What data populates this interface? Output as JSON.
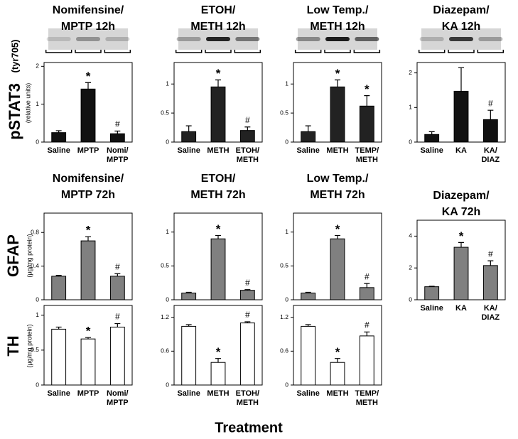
{
  "figure": {
    "row_titles": [
      {
        "title": "pSTAT3",
        "sub": "(tyr705)",
        "unit": "(relative units)"
      },
      {
        "title": "GFAP",
        "unit": "(µg/mg protein)"
      },
      {
        "title": "TH",
        "unit": "(µg/mg protein)"
      }
    ],
    "xlabel": "Treatment"
  },
  "chart_data": [
    {
      "type": "bar",
      "title": [
        "Nomifensine/",
        "MPTP 12h"
      ],
      "categories": [
        [
          "Saline"
        ],
        [
          "MPTP"
        ],
        [
          "Nomi/",
          "MPTP"
        ]
      ],
      "values": [
        0.25,
        1.4,
        0.22
      ],
      "errors": [
        0.05,
        0.17,
        0.07
      ],
      "markers": [
        null,
        "*",
        "#"
      ],
      "color": "#111111",
      "ylim": [
        0,
        2.1
      ],
      "yticks": [
        0,
        1,
        2
      ]
    },
    {
      "type": "bar",
      "title": [
        "ETOH/",
        "METH 12h"
      ],
      "categories": [
        [
          "Saline"
        ],
        [
          "METH"
        ],
        [
          "ETOH/",
          "METH"
        ]
      ],
      "values": [
        0.18,
        0.95,
        0.2
      ],
      "errors": [
        0.1,
        0.12,
        0.06
      ],
      "markers": [
        null,
        "*",
        "#"
      ],
      "color": "#222222",
      "ylim": [
        0,
        1.37
      ],
      "yticks": [
        0,
        0.5,
        1
      ]
    },
    {
      "type": "bar",
      "title": [
        "Low Temp./",
        "METH 12h"
      ],
      "categories": [
        [
          "Saline"
        ],
        [
          "METH"
        ],
        [
          "TEMP/",
          "METH"
        ]
      ],
      "values": [
        0.18,
        0.95,
        0.62
      ],
      "errors": [
        0.1,
        0.12,
        0.18
      ],
      "markers": [
        null,
        "*",
        "*"
      ],
      "color": "#222222",
      "ylim": [
        0,
        1.37
      ],
      "yticks": [
        0,
        0.5,
        1
      ]
    },
    {
      "type": "bar",
      "title": [
        "Diazepam/",
        "KA 12h"
      ],
      "categories": [
        [
          "Saline"
        ],
        [
          "KA"
        ],
        [
          "KA/",
          "DIAZ"
        ]
      ],
      "values": [
        0.22,
        1.47,
        0.65
      ],
      "errors": [
        0.08,
        0.68,
        0.27
      ],
      "markers": [
        null,
        null,
        "#"
      ],
      "color": "#111111",
      "ylim": [
        0,
        2.3
      ],
      "yticks": [
        0,
        1,
        2
      ]
    },
    {
      "type": "bar",
      "title": [
        "Nomifensine/",
        "MPTP 72h"
      ],
      "values": [
        0.28,
        0.7,
        0.28
      ],
      "errors": [
        0.01,
        0.05,
        0.03
      ],
      "markers": [
        null,
        "*",
        "#"
      ],
      "color": "#808080",
      "ylim": [
        0,
        1.03
      ],
      "yticks": [
        0,
        0.4,
        0.8
      ]
    },
    {
      "type": "bar",
      "title": [
        "ETOH/",
        "METH 72h"
      ],
      "values": [
        0.1,
        0.9,
        0.14
      ],
      "errors": [
        0.01,
        0.05,
        0.01
      ],
      "markers": [
        null,
        "*",
        "#"
      ],
      "color": "#808080",
      "ylim": [
        0,
        1.28
      ],
      "yticks": [
        0,
        0.5,
        1
      ]
    },
    {
      "type": "bar",
      "title": [
        "Low Temp./",
        "METH 72h"
      ],
      "values": [
        0.1,
        0.9,
        0.18
      ],
      "errors": [
        0.01,
        0.05,
        0.06
      ],
      "markers": [
        null,
        "*",
        "#"
      ],
      "color": "#808080",
      "ylim": [
        0,
        1.28
      ],
      "yticks": [
        0,
        0.5,
        1
      ]
    },
    {
      "type": "bar",
      "title": [
        "Diazepam/",
        "KA 72h"
      ],
      "categories": [
        [
          "Saline"
        ],
        [
          "KA"
        ],
        [
          "KA/",
          "DIAZ"
        ]
      ],
      "values": [
        0.82,
        3.3,
        2.15
      ],
      "errors": [
        0.03,
        0.3,
        0.3
      ],
      "markers": [
        null,
        "*",
        "#"
      ],
      "color": "#808080",
      "ylim": [
        0,
        5.0
      ],
      "yticks": [
        0,
        2,
        4
      ]
    },
    {
      "type": "bar",
      "categories": [
        [
          "Saline"
        ],
        [
          "MPTP"
        ],
        [
          "Nomi/",
          "MPTP"
        ]
      ],
      "values": [
        0.8,
        0.66,
        0.83
      ],
      "errors": [
        0.03,
        0.02,
        0.05
      ],
      "markers": [
        null,
        "*",
        "#"
      ],
      "color": "#ffffff",
      "ylim": [
        0,
        1.14
      ],
      "yticks": [
        0,
        0.5,
        1
      ]
    },
    {
      "type": "bar",
      "categories": [
        [
          "Saline"
        ],
        [
          "METH"
        ],
        [
          "ETOH/",
          "METH"
        ]
      ],
      "values": [
        1.04,
        0.4,
        1.1
      ],
      "errors": [
        0.03,
        0.07,
        0.02
      ],
      "markers": [
        null,
        "*",
        "#"
      ],
      "color": "#ffffff",
      "ylim": [
        0,
        1.41
      ],
      "yticks": [
        0,
        0.6,
        1.2
      ]
    },
    {
      "type": "bar",
      "categories": [
        [
          "Saline"
        ],
        [
          "METH"
        ],
        [
          "TEMP/",
          "METH"
        ]
      ],
      "values": [
        1.04,
        0.4,
        0.87
      ],
      "errors": [
        0.03,
        0.07,
        0.07
      ],
      "markers": [
        null,
        "*",
        "#"
      ],
      "color": "#ffffff",
      "ylim": [
        0,
        1.41
      ],
      "yticks": [
        0,
        0.6,
        1.2
      ]
    }
  ]
}
